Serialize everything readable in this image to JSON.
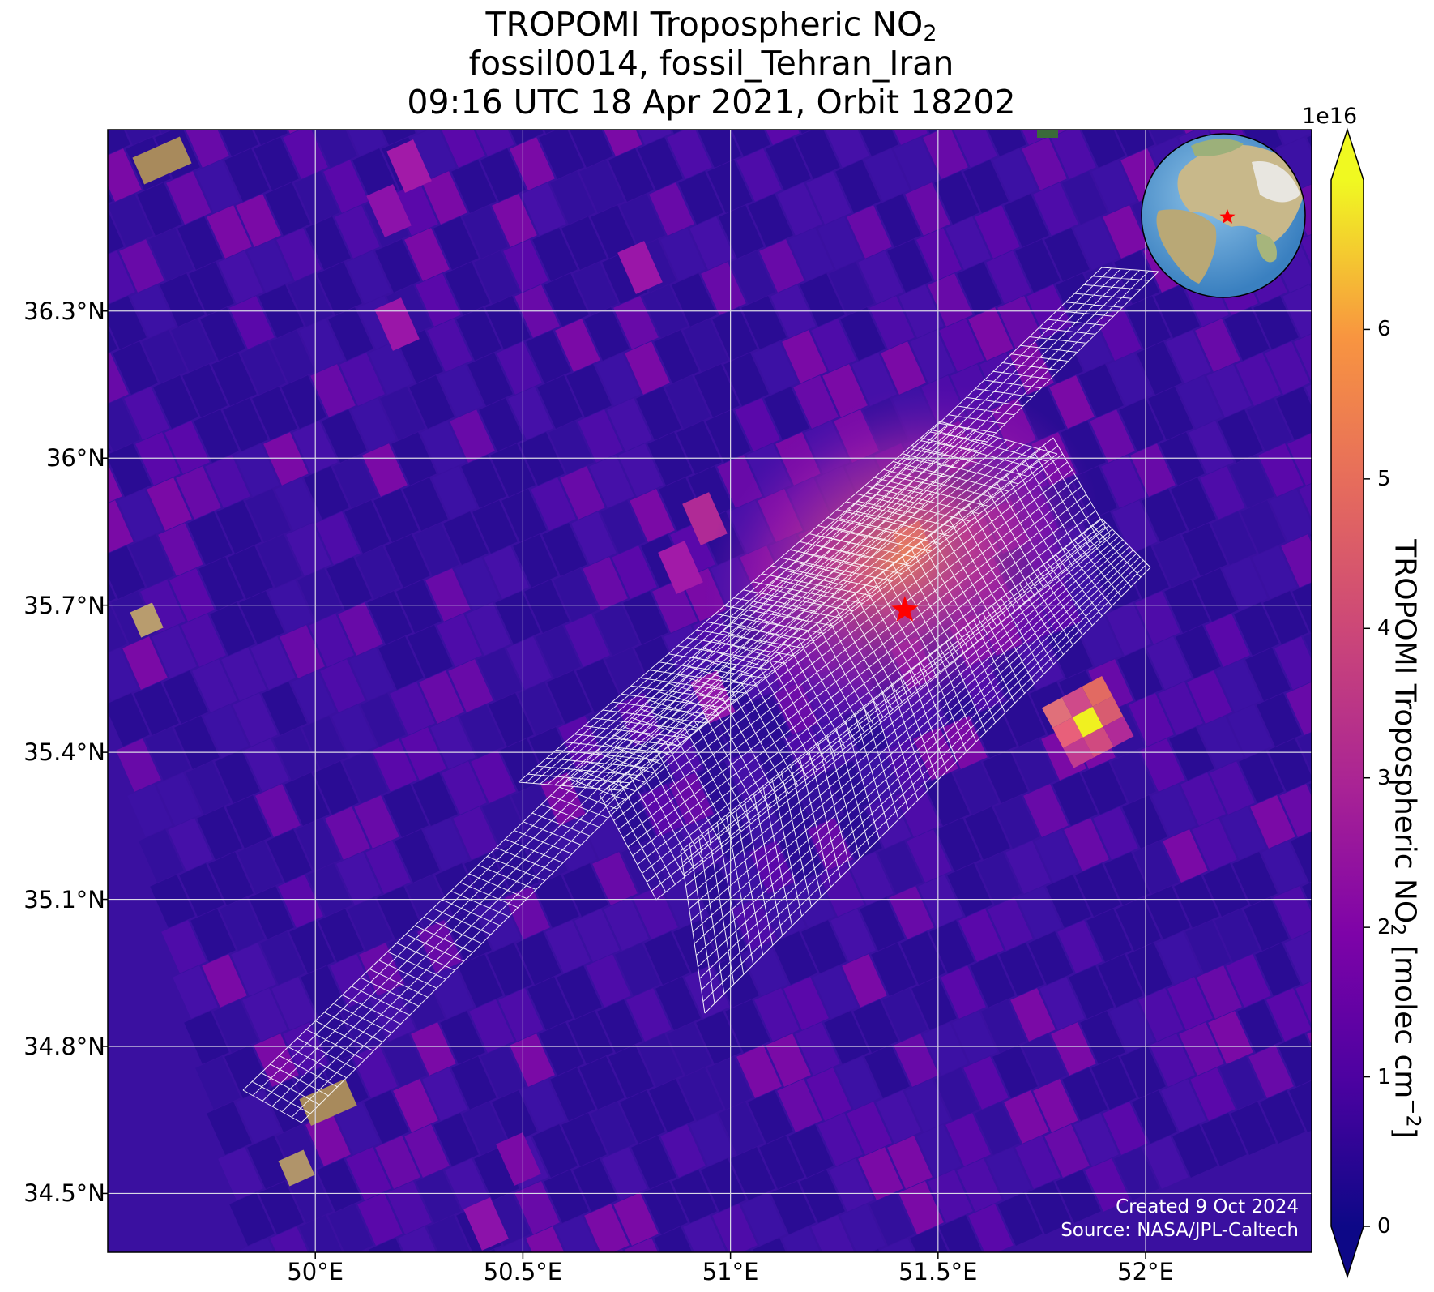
{
  "title": {
    "line1_prefix": "TROPOMI Tropospheric NO",
    "line1_sub": "2",
    "line2": "fossil0014, fossil_Tehran_Iran",
    "line3": "09:16 UTC 18 Apr 2021, Orbit 18202"
  },
  "map": {
    "lon_range": [
      49.5,
      52.4
    ],
    "lat_range": [
      34.38,
      36.67
    ],
    "lat_ticks": [
      {
        "value": 36.3,
        "label": "36.3°N"
      },
      {
        "value": 36.0,
        "label": "36°N"
      },
      {
        "value": 35.7,
        "label": "35.7°N"
      },
      {
        "value": 35.4,
        "label": "35.4°N"
      },
      {
        "value": 35.1,
        "label": "35.1°N"
      },
      {
        "value": 34.8,
        "label": "34.8°N"
      },
      {
        "value": 34.5,
        "label": "34.5°N"
      }
    ],
    "lon_ticks": [
      {
        "value": 50.0,
        "label": "50°E"
      },
      {
        "value": 50.5,
        "label": "50.5°E"
      },
      {
        "value": 51.0,
        "label": "51°E"
      },
      {
        "value": 51.5,
        "label": "51.5°E"
      },
      {
        "value": 52.0,
        "label": "52°E"
      }
    ],
    "target": {
      "lon": 51.42,
      "lat": 35.69
    },
    "background_color": "#3a10a0",
    "inset_globe": "globe-icon"
  },
  "colorbar": {
    "exponent": "1e16",
    "min": 0,
    "max": 7.0,
    "ticks": [
      {
        "value": 0,
        "label": "0"
      },
      {
        "value": 1,
        "label": "1"
      },
      {
        "value": 2,
        "label": "2"
      },
      {
        "value": 3,
        "label": "3"
      },
      {
        "value": 4,
        "label": "4"
      },
      {
        "value": 5,
        "label": "5"
      },
      {
        "value": 6,
        "label": "6"
      }
    ],
    "colormap": "plasma",
    "colors": [
      "#0d0887",
      "#6a00a8",
      "#b12a90",
      "#e16462",
      "#fca636",
      "#f0f921"
    ],
    "label_prefix": "TROPOMI Tropospheric NO",
    "label_sub": "2",
    "label_mid": " [molec cm",
    "label_sup": "−2",
    "label_suffix": "]"
  },
  "credits": {
    "line1": "Created 9 Oct 2024",
    "line2": "Source: NASA/JPL-Caltech"
  }
}
